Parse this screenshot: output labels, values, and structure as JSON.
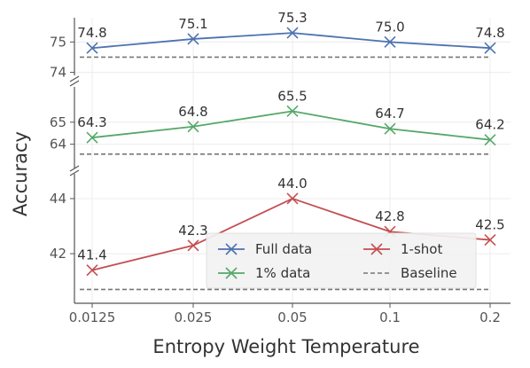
{
  "chart_data": {
    "type": "line",
    "xlabel": "Entropy Weight Temperature",
    "ylabel": "Accuracy",
    "categories": [
      "0.0125",
      "0.025",
      "0.05",
      "0.1",
      "0.2"
    ],
    "grid": true,
    "legend_position": "bottom-right",
    "panels": [
      {
        "id": "top",
        "ylim": [
          73.9,
          75.8
        ],
        "yticks": [
          74,
          75
        ],
        "series": [
          {
            "name": "Full data",
            "color": "#4c72b0",
            "values": [
              74.8,
              75.1,
              75.3,
              75.0,
              74.8
            ],
            "labels": [
              "74.8",
              "75.1",
              "75.3",
              "75.0",
              "74.8"
            ]
          }
        ],
        "baseline": 74.5
      },
      {
        "id": "middle",
        "ylim": [
          62.9,
          66.6
        ],
        "yticks": [
          64,
          65
        ],
        "series": [
          {
            "name": "1% data",
            "color": "#55a868",
            "values": [
              64.3,
              64.8,
              65.5,
              64.7,
              64.2
            ],
            "labels": [
              "64.3",
              "64.8",
              "65.5",
              "64.7",
              "64.2"
            ]
          }
        ],
        "baseline": 63.55
      },
      {
        "id": "bottom",
        "ylim": [
          40.2,
          44.9
        ],
        "yticks": [
          42,
          44
        ],
        "series": [
          {
            "name": "1-shot",
            "color": "#c44e52",
            "values": [
              41.4,
              42.3,
              44.0,
              42.8,
              42.5
            ],
            "labels": [
              "41.4",
              "42.3",
              "44.0",
              "42.8",
              "42.5"
            ]
          }
        ],
        "baseline": 40.7
      }
    ],
    "legend": [
      {
        "label": "Full data",
        "color": "#4c72b0",
        "style": "line-x"
      },
      {
        "label": "1-shot",
        "color": "#c44e52",
        "style": "line-x"
      },
      {
        "label": "1% data",
        "color": "#55a868",
        "style": "line-x"
      },
      {
        "label": "Baseline",
        "color": "#777777",
        "style": "dashed"
      }
    ]
  }
}
